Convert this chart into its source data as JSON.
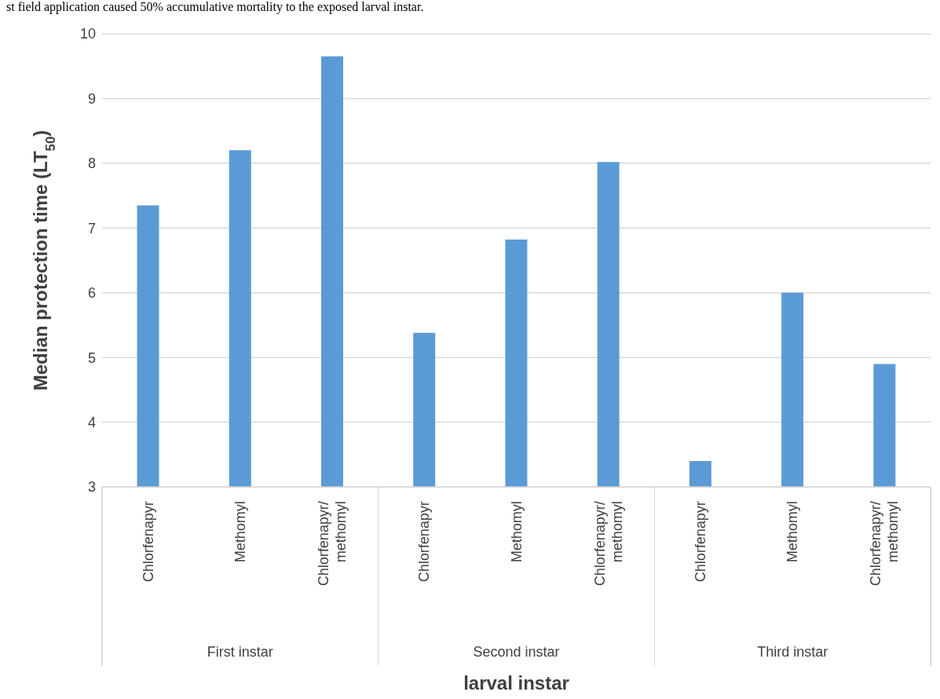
{
  "chart_data": {
    "type": "bar",
    "ylabel": "Median protection time (LT$_{50}$)",
    "xlabel": "larval instar",
    "categories": [
      "Chlorfenapyr",
      "Methomyl",
      "Chlorfenapyr/methomyl",
      "Chlorfenapyr",
      "Methomyl",
      "Chlorfenapyr/methomyl",
      "Chlorfenapyr",
      "Methomyl",
      "Chlorfenapyr/methomyl"
    ],
    "values": [
      7.35,
      8.2,
      9.65,
      5.38,
      6.82,
      8.02,
      3.4,
      6.0,
      4.9
    ],
    "color": "#5b9bd5",
    "ylim": [
      3,
      10
    ],
    "yticks": [
      3,
      4,
      5,
      6,
      7,
      8,
      9,
      10
    ],
    "grid": "y",
    "annotations": [
      "st field application caused 50% accumulative mortality to the exposed larval instar.",
      "First instar",
      "Second instar",
      "Third instar"
    ]
  }
}
